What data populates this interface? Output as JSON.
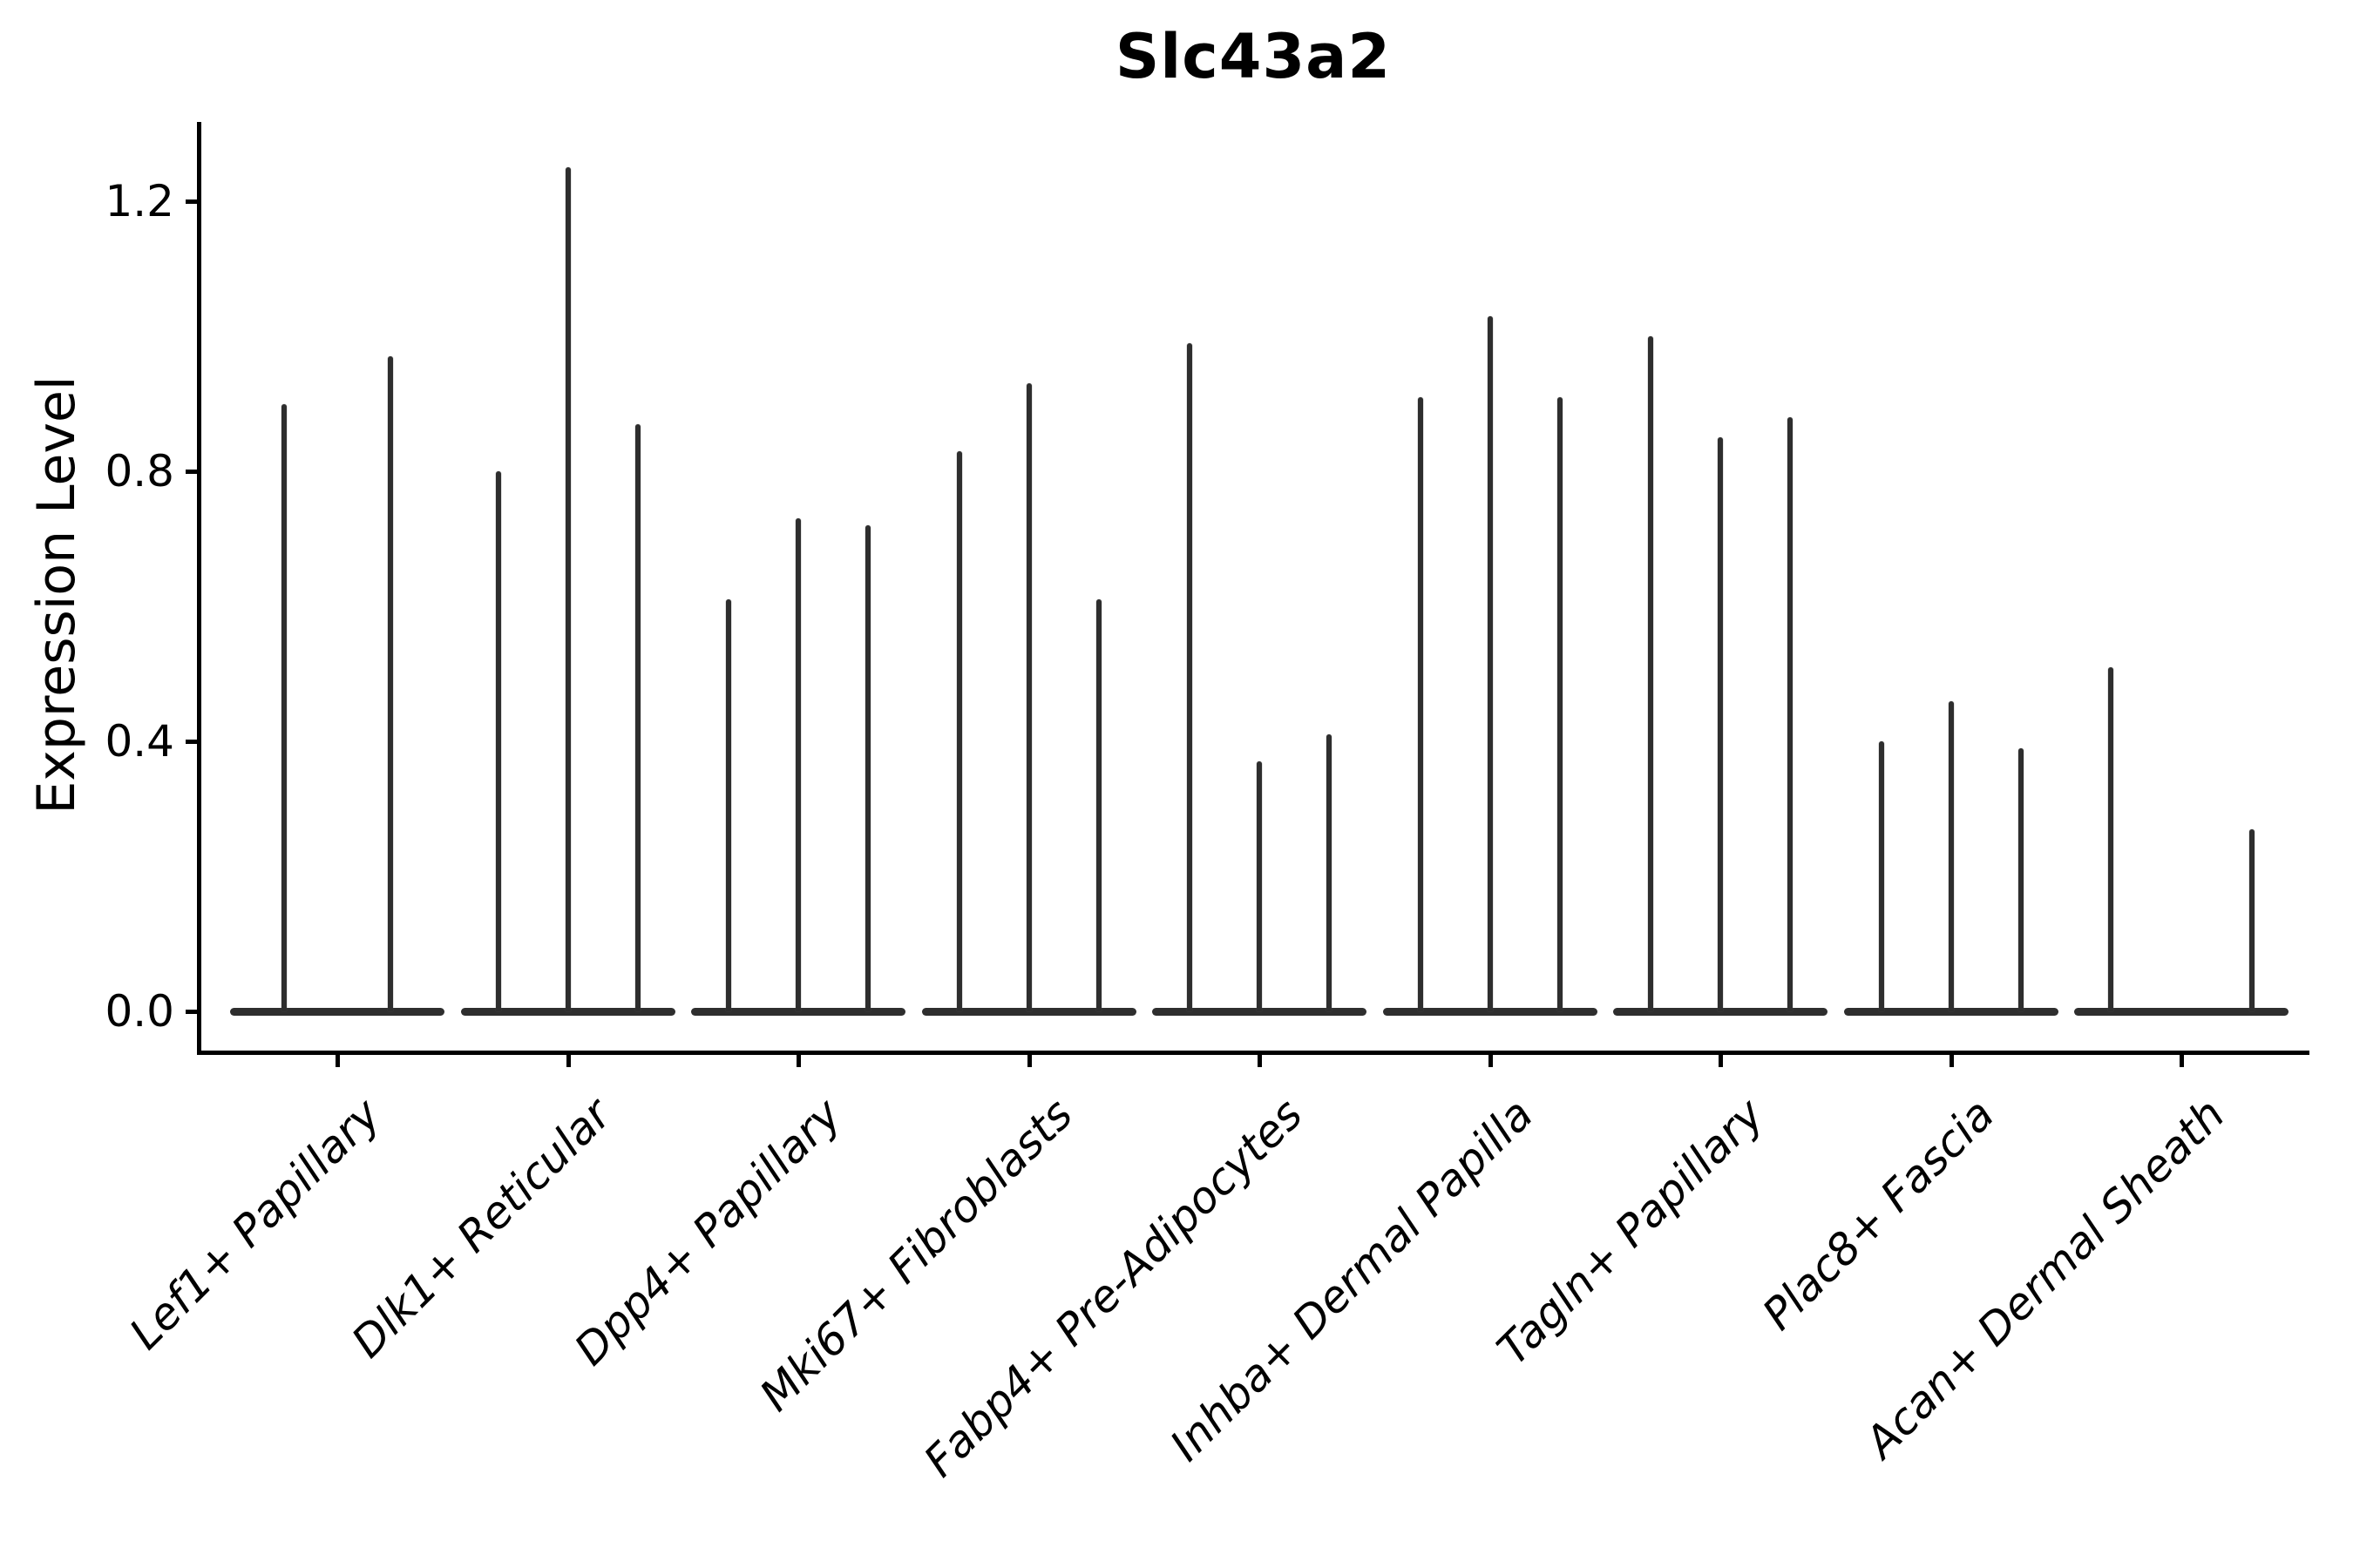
{
  "figure": {
    "background": "#ffffff"
  },
  "chart_data": {
    "type": "violin",
    "title": "Slc43a2",
    "ylabel": "Expression Level",
    "xlabel": "",
    "ylim": [
      0,
      1.32
    ],
    "grid": false,
    "legend": "none",
    "yticks": [
      {
        "value": 0.0,
        "label": "0.0"
      },
      {
        "value": 0.4,
        "label": "0.4"
      },
      {
        "value": 0.8,
        "label": "0.8"
      },
      {
        "value": 1.2,
        "label": "1.2"
      }
    ],
    "note": "Each category shows 2-3 needle-thin violins; 'offset' is horizontal px offset from category center, 'max' is the violin apex expression value",
    "categories": [
      {
        "label": "Lef1+ Papillary",
        "violins": [
          {
            "offset": -61,
            "max": 0.9
          },
          {
            "offset": 61,
            "max": 0.97
          }
        ]
      },
      {
        "label": "Dlk1+ Reticular",
        "violins": [
          {
            "offset": -80,
            "max": 0.8
          },
          {
            "offset": 0,
            "max": 1.25
          },
          {
            "offset": 80,
            "max": 0.87
          }
        ]
      },
      {
        "label": "Dpp4+ Papillary",
        "violins": [
          {
            "offset": -80,
            "max": 0.61
          },
          {
            "offset": 0,
            "max": 0.73
          },
          {
            "offset": 80,
            "max": 0.72
          }
        ]
      },
      {
        "label": "Mki67+ Fibroblasts",
        "violins": [
          {
            "offset": -80,
            "max": 0.83
          },
          {
            "offset": 0,
            "max": 0.93
          },
          {
            "offset": 80,
            "max": 0.61
          }
        ]
      },
      {
        "label": "Fabp4+ Pre-Adipocytes",
        "violins": [
          {
            "offset": -80,
            "max": 0.99
          },
          {
            "offset": 0,
            "max": 0.37
          },
          {
            "offset": 80,
            "max": 0.41
          }
        ]
      },
      {
        "label": "Inhba+ Dermal Papilla",
        "violins": [
          {
            "offset": -80,
            "max": 0.91
          },
          {
            "offset": 0,
            "max": 1.03
          },
          {
            "offset": 80,
            "max": 0.91
          }
        ]
      },
      {
        "label": "Tagln+ Papillary",
        "violins": [
          {
            "offset": -80,
            "max": 1.0
          },
          {
            "offset": 0,
            "max": 0.85
          },
          {
            "offset": 80,
            "max": 0.88
          }
        ]
      },
      {
        "label": "Plac8+ Fascia",
        "violins": [
          {
            "offset": -80,
            "max": 0.4
          },
          {
            "offset": 0,
            "max": 0.46
          },
          {
            "offset": 80,
            "max": 0.39
          }
        ]
      },
      {
        "label": "Acan+ Dermal Sheath",
        "violins": [
          {
            "offset": -81,
            "max": 0.51
          },
          {
            "offset": 81,
            "max": 0.27
          }
        ]
      }
    ]
  },
  "colors": {
    "violin_fill": "#2e2e2e",
    "axis": "#000000",
    "text": "#000000",
    "background": "#ffffff"
  }
}
